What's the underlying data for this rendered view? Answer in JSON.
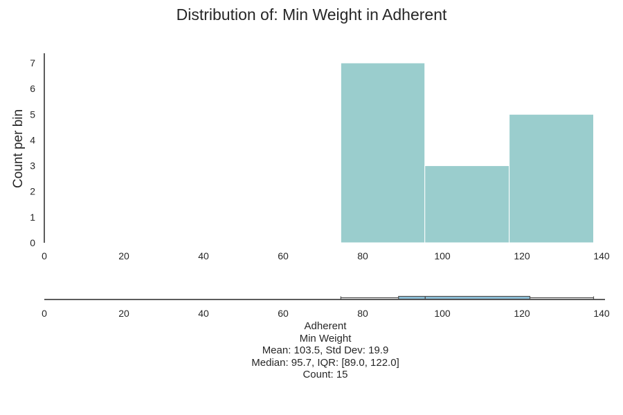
{
  "chart_data": {
    "type": "bar",
    "title": "Distribution of: Min Weight in Adherent",
    "ylabel": "Count per bin",
    "xlabel": "",
    "xlim": [
      0,
      140
    ],
    "ylim": [
      0,
      7.35
    ],
    "x_ticks": [
      "0",
      "20",
      "40",
      "60",
      "80",
      "100",
      "120",
      "140"
    ],
    "y_ticks": [
      "0",
      "1",
      "2",
      "3",
      "4",
      "5",
      "6",
      "7"
    ],
    "bins": [
      {
        "start": 74.5,
        "end": 95.6,
        "count": 7
      },
      {
        "start": 95.6,
        "end": 116.8,
        "count": 3
      },
      {
        "start": 116.8,
        "end": 138.0,
        "count": 5
      }
    ],
    "grid": false,
    "boxplot": {
      "min": 74.5,
      "q1": 89.0,
      "median": 95.7,
      "q3": 122.0,
      "max": 138.0
    },
    "bar_color": "#9acdcd",
    "box_color": "#8ec3dc"
  },
  "stats": {
    "group": "Adherent",
    "variable": "Min Weight",
    "mean_line": "Mean: 103.5, Std Dev: 19.9",
    "median_line": "Median: 95.7, IQR: [89.0, 122.0]",
    "count_line": "Count: 15"
  }
}
